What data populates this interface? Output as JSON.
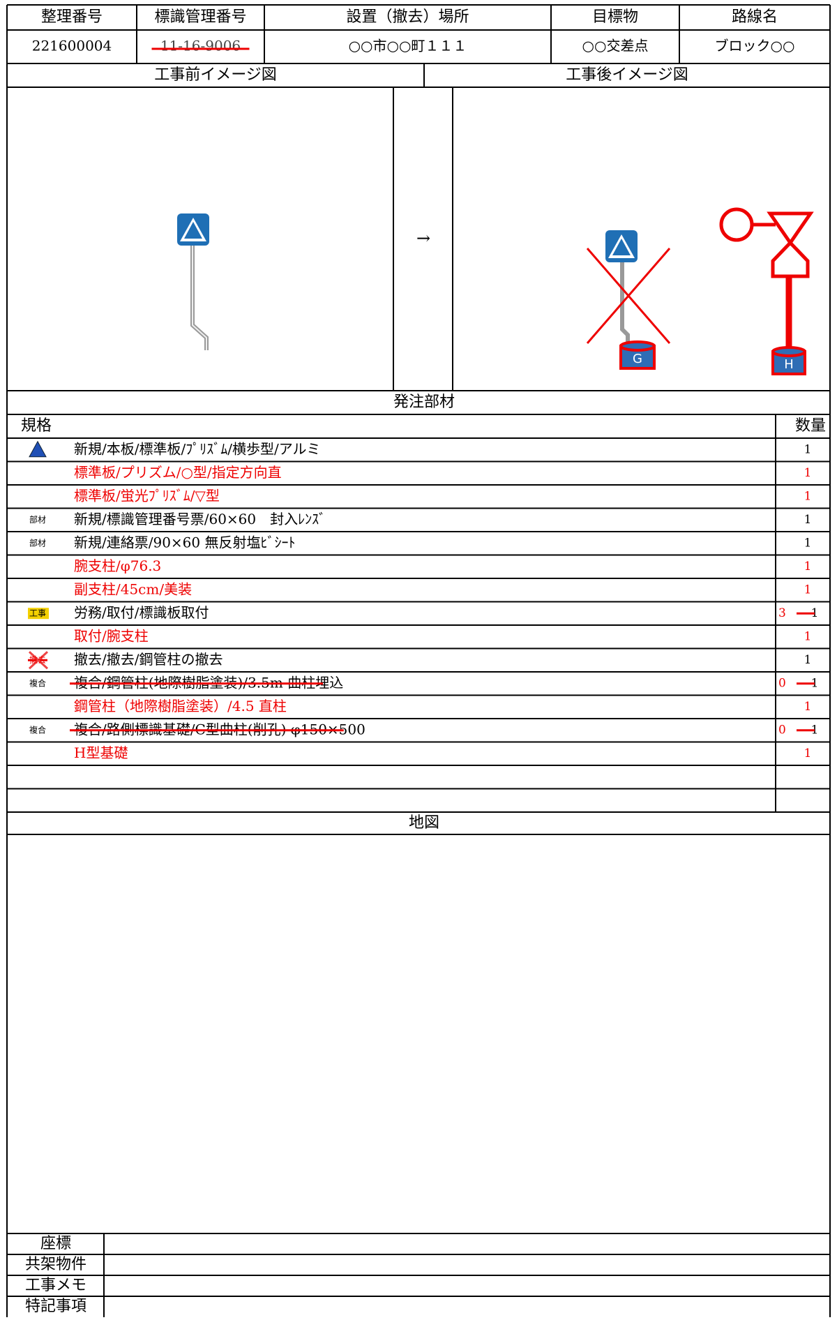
{
  "header": {
    "columns": [
      "整理番号",
      "標識管理番号",
      "設置（撤去）場所",
      "目標物",
      "路線名"
    ],
    "values": [
      "221600004",
      "11-16-9006",
      "○○市○○町１１１",
      "○○交差点",
      "ブロック○○"
    ]
  },
  "images": {
    "before_title": "工事前イメージ図",
    "after_title": "工事後イメージ図",
    "arrow": "→",
    "old_foundation": "G",
    "new_foundation": "H"
  },
  "materials": {
    "title": "発注部材",
    "spec_header": "規格",
    "qty_header": "数量",
    "rows": [
      {
        "icon": null,
        "text": "新規/本板/標準板/ﾌﾟﾘｽﾞﾑ/横歩型/アルミ",
        "qty": "1",
        "red": false
      },
      {
        "icon": null,
        "text": "標準板/プリズム/○型/指定方向直",
        "qty": "1",
        "red": true
      },
      {
        "icon": null,
        "text": "標準板/蛍光ﾌﾟﾘｽﾞﾑ/▽型",
        "qty": "1",
        "red": true
      },
      {
        "icon": "部材",
        "text": "新規/標識管理番号票/60×60　封入ﾚﾝｽﾞ",
        "qty": "1",
        "red": false
      },
      {
        "icon": "部材",
        "text": "新規/連絡票/90×60 無反射塩ﾋﾞｼｰﾄ",
        "qty": "1",
        "red": false
      },
      {
        "icon": null,
        "text": "腕支柱/φ76.3",
        "qty": "1",
        "red": true
      },
      {
        "icon": null,
        "text": "副支柱/45cm/美装",
        "qty": "1",
        "red": true
      },
      {
        "icon": "工事",
        "text": "労務/取付/標識板取付",
        "qty": "1",
        "new_qty": "3",
        "red": false
      },
      {
        "icon": null,
        "text": "取付/腕支柱",
        "qty": "1",
        "red": true
      },
      {
        "icon": "撤去",
        "text": "撤去/撤去/鋼管柱の撤去",
        "qty": "1",
        "red": false
      },
      {
        "icon": "複合",
        "text": "複合/鋼管柱(地際樹脂塗装)/3.5m 曲柱埋込",
        "qty": "1",
        "new_qty": "0",
        "red": false,
        "struck": true
      },
      {
        "icon": null,
        "text": "鋼管柱（地際樹脂塗装）/4.5 直柱",
        "qty": "1",
        "red": true
      },
      {
        "icon": "複合",
        "text": "複合/路側標識基礎/C型曲柱(削孔) φ150×500",
        "qty": "1",
        "new_qty": "0",
        "red": false,
        "struck": true
      },
      {
        "icon": null,
        "text": "H型基礎",
        "qty": "1",
        "red": true
      }
    ]
  },
  "map": {
    "title": "地図"
  },
  "footer": {
    "labels": [
      "座標",
      "共架物件",
      "工事メモ",
      "特記事項"
    ]
  }
}
